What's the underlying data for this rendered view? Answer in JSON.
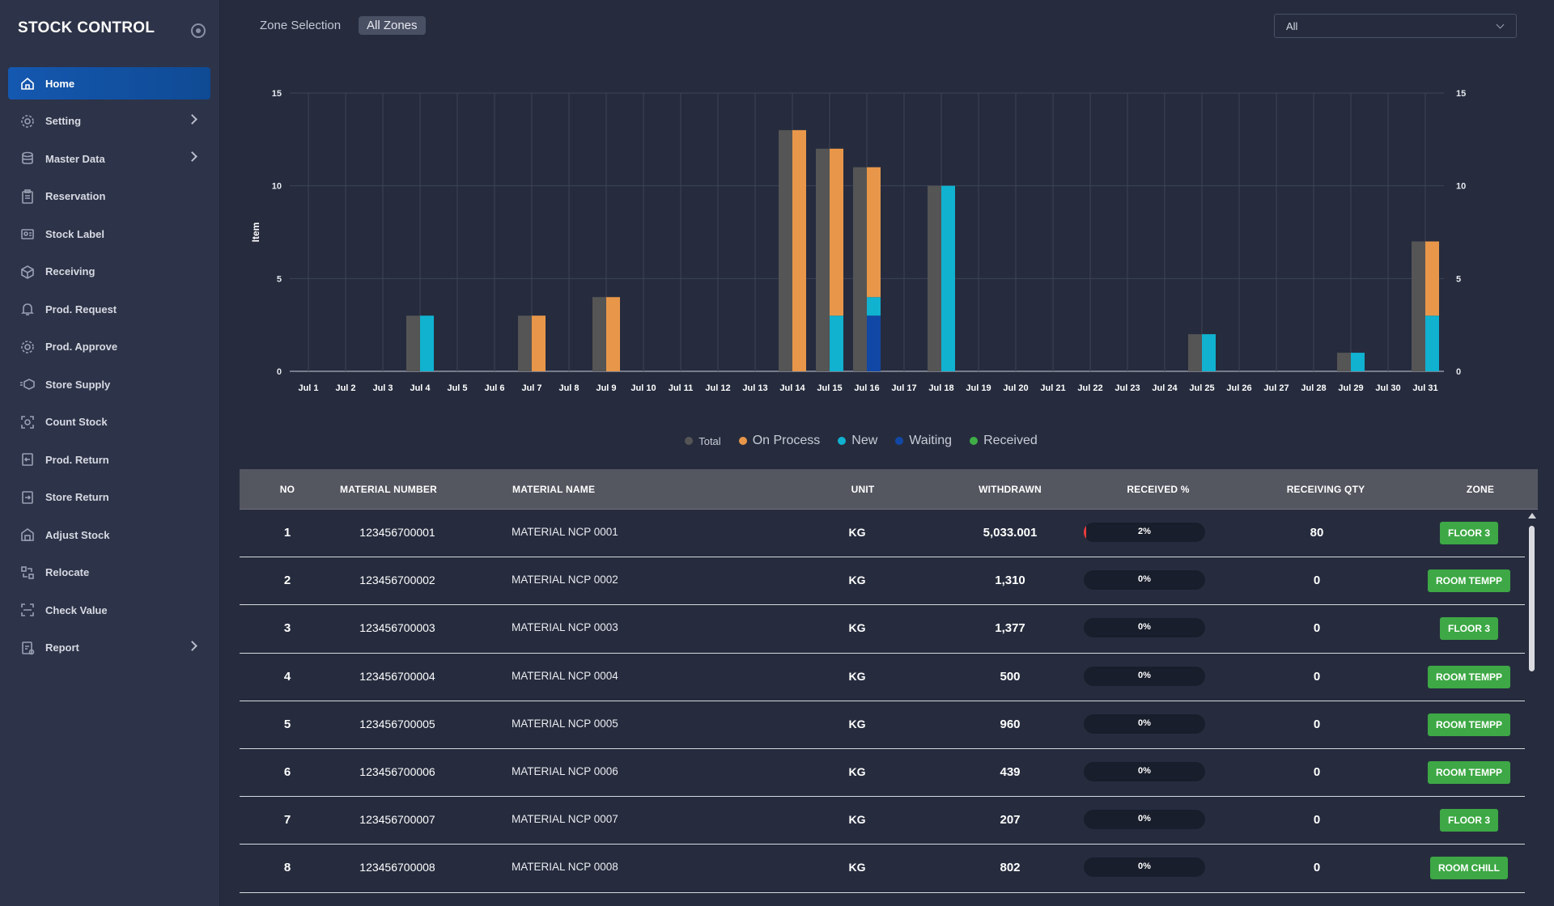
{
  "app": {
    "title": "STOCK CONTROL"
  },
  "sidebar": {
    "items": [
      {
        "label": "Home",
        "icon": "home-icon",
        "active": true,
        "submenu": false
      },
      {
        "label": "Setting",
        "icon": "gear-icon",
        "active": false,
        "submenu": true
      },
      {
        "label": "Master Data",
        "icon": "database-icon",
        "active": false,
        "submenu": true
      },
      {
        "label": "Reservation",
        "icon": "clipboard-icon",
        "active": false,
        "submenu": false
      },
      {
        "label": "Stock Label",
        "icon": "id-card-icon",
        "active": false,
        "submenu": false
      },
      {
        "label": "Receiving",
        "icon": "box-receive-icon",
        "active": false,
        "submenu": false
      },
      {
        "label": "Prod. Request",
        "icon": "bell-icon",
        "active": false,
        "submenu": false
      },
      {
        "label": "Prod. Approve",
        "icon": "gear-check-icon",
        "active": false,
        "submenu": false
      },
      {
        "label": "Store Supply",
        "icon": "cube-icon",
        "active": false,
        "submenu": false
      },
      {
        "label": "Count Stock",
        "icon": "scan-icon",
        "active": false,
        "submenu": false
      },
      {
        "label": "Prod. Return",
        "icon": "return-icon",
        "active": false,
        "submenu": false
      },
      {
        "label": "Store Return",
        "icon": "store-return-icon",
        "active": false,
        "submenu": false
      },
      {
        "label": "Adjust Stock",
        "icon": "warehouse-icon",
        "active": false,
        "submenu": false
      },
      {
        "label": "Relocate",
        "icon": "relocate-icon",
        "active": false,
        "submenu": false
      },
      {
        "label": "Check Value",
        "icon": "frame-icon",
        "active": false,
        "submenu": false
      },
      {
        "label": "Report",
        "icon": "report-icon",
        "active": false,
        "submenu": true
      }
    ]
  },
  "zone": {
    "title": "Zone Selection",
    "chip": "All Zones",
    "select_value": "All"
  },
  "chart_data": {
    "type": "bar",
    "ylabel": "Item",
    "ylim": [
      0,
      15
    ],
    "yticks": [
      0,
      5,
      10,
      15
    ],
    "categories": [
      "Jul 1",
      "Jul 2",
      "Jul 3",
      "Jul 4",
      "Jul 5",
      "Jul 6",
      "Jul 7",
      "Jul 8",
      "Jul 9",
      "Jul 10",
      "Jul 11",
      "Jul 12",
      "Jul 13",
      "Jul 14",
      "Jul 15",
      "Jul 16",
      "Jul 17",
      "Jul 18",
      "Jul 19",
      "Jul 20",
      "Jul 21",
      "Jul 22",
      "Jul 23",
      "Jul 24",
      "Jul 25",
      "Jul 26",
      "Jul 27",
      "Jul 28",
      "Jul 29",
      "Jul 30",
      "Jul 31"
    ],
    "series": [
      {
        "name": "Total",
        "color": "#555555",
        "stack": "total",
        "values": [
          0,
          0,
          0,
          3,
          0,
          0,
          3,
          0,
          4,
          0,
          0,
          0,
          0,
          13,
          12,
          11,
          0,
          10,
          0,
          0,
          0,
          0,
          0,
          0,
          2,
          0,
          0,
          0,
          1,
          0,
          7
        ]
      },
      {
        "name": "On Process",
        "color": "#e8974a",
        "stack": "status",
        "values": [
          0,
          0,
          0,
          0,
          0,
          0,
          3,
          0,
          4,
          0,
          0,
          0,
          0,
          13,
          9,
          7,
          0,
          0,
          0,
          0,
          0,
          0,
          0,
          0,
          0,
          0,
          0,
          0,
          0,
          0,
          4
        ]
      },
      {
        "name": "New",
        "color": "#10b2cf",
        "stack": "status",
        "values": [
          0,
          0,
          0,
          3,
          0,
          0,
          0,
          0,
          0,
          0,
          0,
          0,
          0,
          0,
          3,
          1,
          0,
          10,
          0,
          0,
          0,
          0,
          0,
          0,
          2,
          0,
          0,
          0,
          1,
          0,
          3
        ]
      },
      {
        "name": "Waiting",
        "color": "#1148a6",
        "stack": "status",
        "values": [
          0,
          0,
          0,
          0,
          0,
          0,
          0,
          0,
          0,
          0,
          0,
          0,
          0,
          0,
          0,
          3,
          0,
          0,
          0,
          0,
          0,
          0,
          0,
          0,
          0,
          0,
          0,
          0,
          0,
          0,
          0
        ]
      },
      {
        "name": "Received",
        "color": "#3fae47",
        "stack": "status",
        "values": [
          0,
          0,
          0,
          0,
          0,
          0,
          0,
          0,
          0,
          0,
          0,
          0,
          0,
          0,
          0,
          0,
          0,
          0,
          0,
          0,
          0,
          0,
          0,
          0,
          0,
          0,
          0,
          0,
          0,
          0,
          0
        ]
      }
    ],
    "legend": [
      "Total",
      "On Process",
      "New",
      "Waiting",
      "Received"
    ],
    "grid": true,
    "legend_position": "bottom"
  },
  "table": {
    "headers": [
      "NO",
      "MATERIAL NUMBER",
      "MATERIAL NAME",
      "UNIT",
      "WITHDRAWN",
      "RECEIVED %",
      "RECEIVING QTY",
      "ZONE"
    ],
    "rows": [
      {
        "no": "1",
        "material_number": "123456700001",
        "material_name": "MATERIAL NCP 0001",
        "unit": "KG",
        "withdrawn": "5,033.001",
        "received_pct": "2%",
        "received_fraction": 0.02,
        "receiving_qty": "80",
        "zone": "FLOOR 3"
      },
      {
        "no": "2",
        "material_number": "123456700002",
        "material_name": "MATERIAL NCP 0002",
        "unit": "KG",
        "withdrawn": "1,310",
        "received_pct": "0%",
        "received_fraction": 0,
        "receiving_qty": "0",
        "zone": "ROOM TEMPP"
      },
      {
        "no": "3",
        "material_number": "123456700003",
        "material_name": "MATERIAL NCP 0003",
        "unit": "KG",
        "withdrawn": "1,377",
        "received_pct": "0%",
        "received_fraction": 0,
        "receiving_qty": "0",
        "zone": "FLOOR 3"
      },
      {
        "no": "4",
        "material_number": "123456700004",
        "material_name": "MATERIAL NCP 0004",
        "unit": "KG",
        "withdrawn": "500",
        "received_pct": "0%",
        "received_fraction": 0,
        "receiving_qty": "0",
        "zone": "ROOM TEMPP"
      },
      {
        "no": "5",
        "material_number": "123456700005",
        "material_name": "MATERIAL NCP 0005",
        "unit": "KG",
        "withdrawn": "960",
        "received_pct": "0%",
        "received_fraction": 0,
        "receiving_qty": "0",
        "zone": "ROOM TEMPP"
      },
      {
        "no": "6",
        "material_number": "123456700006",
        "material_name": "MATERIAL NCP 0006",
        "unit": "KG",
        "withdrawn": "439",
        "received_pct": "0%",
        "received_fraction": 0,
        "receiving_qty": "0",
        "zone": "ROOM TEMPP"
      },
      {
        "no": "7",
        "material_number": "123456700007",
        "material_name": "MATERIAL NCP 0007",
        "unit": "KG",
        "withdrawn": "207",
        "received_pct": "0%",
        "received_fraction": 0,
        "receiving_qty": "0",
        "zone": "FLOOR 3"
      },
      {
        "no": "8",
        "material_number": "123456700008",
        "material_name": "MATERIAL NCP 0008",
        "unit": "KG",
        "withdrawn": "802",
        "received_pct": "0%",
        "received_fraction": 0,
        "receiving_qty": "0",
        "zone": "ROOM CHILL"
      }
    ]
  }
}
